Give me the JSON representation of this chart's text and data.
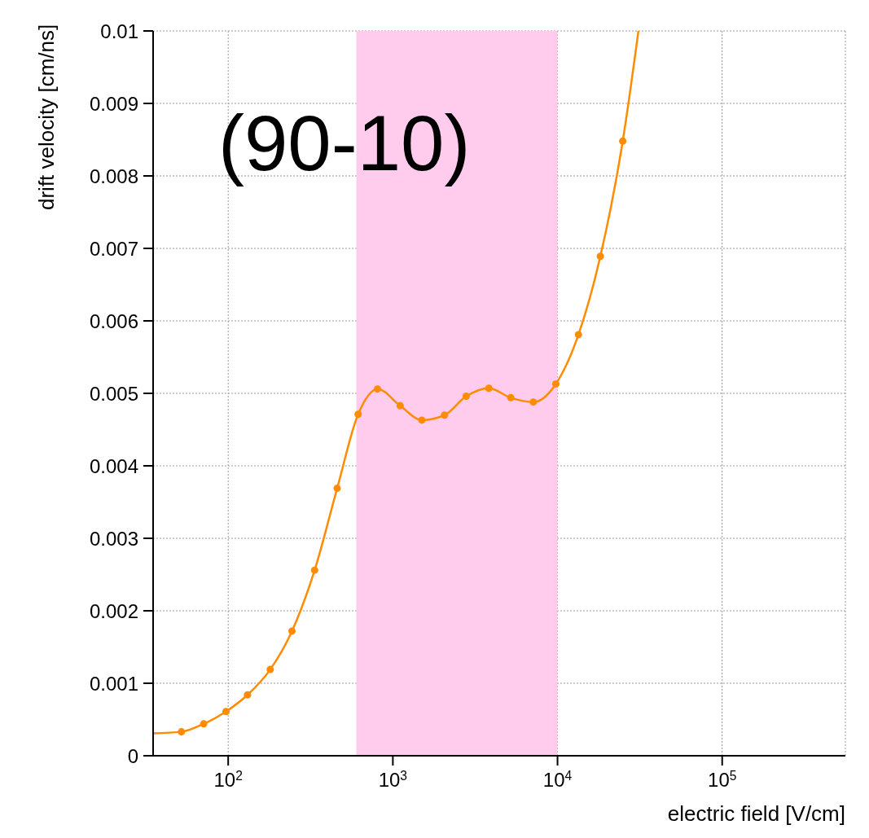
{
  "chart_data": {
    "type": "scatter",
    "xlabel": "electric field [V/cm]",
    "ylabel": "drift velocity [cm/ns]",
    "annotations": [
      "(90-10)"
    ],
    "log": "x",
    "grid": true,
    "xlim": [
      35,
      560000
    ],
    "xticks": [
      {
        "value": 100,
        "label": "10$^{2}$"
      },
      {
        "value": 1000,
        "label": "10$^{3}$"
      },
      {
        "value": 10000,
        "label": "10$^{4}$"
      },
      {
        "value": 100000,
        "label": "10$^{5}$"
      }
    ],
    "ylim": [
      0,
      0.01
    ],
    "yticks": [
      0,
      0.001,
      0.002,
      0.003,
      0.004,
      0.005,
      0.006,
      0.007,
      0.008,
      0.009,
      0.01
    ],
    "bands": [
      {
        "axis": "x",
        "from": 600,
        "to": 10000,
        "color": "#ffccee"
      }
    ],
    "series": [
      {
        "type": "line",
        "marker": "none",
        "color": "#ff8c00",
        "x": [
          35,
          52,
          71,
          97,
          131,
          180,
          244,
          335,
          459,
          615,
          807,
          1107,
          1500,
          2060,
          2790,
          3830,
          5200,
          7130,
          9770,
          13400,
          18200,
          24900,
          31000
        ],
        "values": [
          0.00031,
          0.00033,
          0.00044,
          0.00061,
          0.00084,
          0.00119,
          0.00172,
          0.00256,
          0.00369,
          0.00471,
          0.00506,
          0.00483,
          0.00463,
          0.0047,
          0.00496,
          0.00507,
          0.00494,
          0.00488,
          0.00513,
          0.00581,
          0.00689,
          0.00848,
          0.01
        ]
      },
      {
        "marker": "circle",
        "color": "#ff8c00",
        "x": [
          52,
          71,
          97,
          131,
          180,
          244,
          335,
          459,
          615,
          807,
          1107,
          1500,
          2060,
          2790,
          3830,
          5200,
          7130,
          9770,
          13400,
          18200,
          24900
        ],
        "values": [
          0.00033,
          0.00044,
          0.00061,
          0.00084,
          0.00119,
          0.00172,
          0.00256,
          0.00369,
          0.00471,
          0.00506,
          0.00483,
          0.00463,
          0.0047,
          0.00496,
          0.00507,
          0.00494,
          0.00488,
          0.00513,
          0.00581,
          0.00689,
          0.00848
        ]
      }
    ]
  }
}
